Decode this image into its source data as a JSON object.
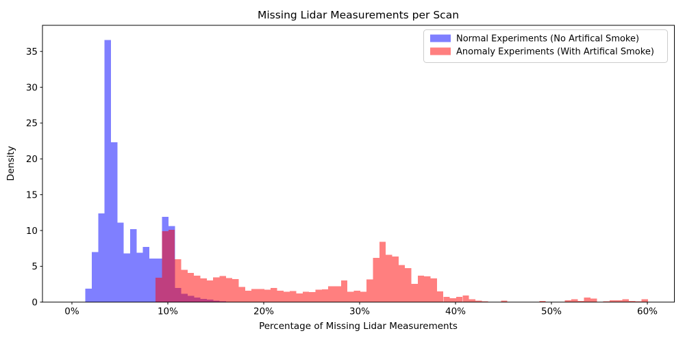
{
  "figure": {
    "title": "Missing Lidar Measurements per Scan",
    "xlabel": "Percentage of Missing Lidar Measurements",
    "ylabel": "Density"
  },
  "legend": {
    "items": [
      {
        "label": "Normal Experiments (No Artifical Smoke)",
        "swatch_color": "#7f7fff"
      },
      {
        "label": "Anomaly Experiments (With Artifical Smoke)",
        "swatch_color": "#ff7f7f"
      }
    ]
  },
  "chart_data": {
    "type": "bar",
    "subtype": "overlaid-histogram",
    "title": "Missing Lidar Measurements per Scan",
    "xlabel": "Percentage of Missing Lidar Measurements",
    "ylabel": "Density",
    "grid": false,
    "legend_position": "upper right",
    "xlim": [
      -3.07,
      62.82
    ],
    "ylim": [
      0,
      38.65
    ],
    "x_ticks": [
      0,
      10,
      20,
      30,
      40,
      50,
      60
    ],
    "x_tick_labels": [
      "0%",
      "10%",
      "20%",
      "30%",
      "40%",
      "50%",
      "60%"
    ],
    "y_ticks": [
      0,
      5,
      10,
      15,
      20,
      25,
      30,
      35
    ],
    "y_tick_labels": [
      "0",
      "5",
      "10",
      "15",
      "20",
      "25",
      "30",
      "35"
    ],
    "bin_width": 0.6667,
    "series": [
      {
        "id": "normal",
        "name": "Normal Experiments (No Artifical Smoke)",
        "color": "rgba(0,0,255,0.5)",
        "bin_start": 1.4,
        "values": [
          1.9,
          7.0,
          12.4,
          36.6,
          22.3,
          11.1,
          6.8,
          10.2,
          6.9,
          7.7,
          6.1,
          6.1,
          11.9,
          10.6,
          2.0,
          1.15,
          0.9,
          0.65,
          0.45,
          0.33,
          0.22,
          0.12
        ]
      },
      {
        "id": "anomaly",
        "name": "Anomaly Experiments (With Artifical Smoke)",
        "color": "rgba(255,0,0,0.5)",
        "bin_start": 8.73,
        "values": [
          3.4,
          9.9,
          10.1,
          6.0,
          4.5,
          4.1,
          3.7,
          3.3,
          3.05,
          3.45,
          3.65,
          3.35,
          3.2,
          2.1,
          1.6,
          1.85,
          1.85,
          1.75,
          2.0,
          1.6,
          1.45,
          1.55,
          1.2,
          1.45,
          1.4,
          1.75,
          1.8,
          2.2,
          2.2,
          3.05,
          1.45,
          1.6,
          1.45,
          3.15,
          6.2,
          8.4,
          6.6,
          6.35,
          5.2,
          4.75,
          2.55,
          3.7,
          3.6,
          3.3,
          1.5,
          0.75,
          0.55,
          0.75,
          0.95,
          0.4,
          0.2,
          0.1,
          0,
          0,
          0.22,
          0,
          0,
          0,
          0,
          0,
          0.15,
          0,
          0,
          0,
          0.26,
          0.38,
          0.16,
          0.64,
          0.5,
          0,
          0.1,
          0.26,
          0.26,
          0.41,
          0.16,
          0.1,
          0.38
        ]
      }
    ]
  }
}
